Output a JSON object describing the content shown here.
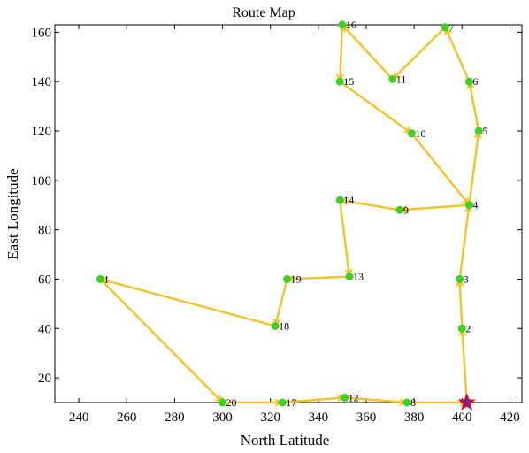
{
  "chart_data": {
    "type": "line",
    "title": "Route Map",
    "xlabel": "North Latitude",
    "ylabel": "East Longitude",
    "xlim": [
      230,
      425
    ],
    "ylim": [
      10,
      163
    ],
    "xticks": [
      240,
      260,
      280,
      300,
      320,
      340,
      360,
      380,
      400,
      420
    ],
    "yticks": [
      20,
      40,
      60,
      80,
      100,
      120,
      140,
      160
    ],
    "grid": false,
    "colors": {
      "route": "#f5c226",
      "point": "#3dd124",
      "start": "#8b1a8b"
    },
    "points": [
      {
        "label": "1",
        "x": 249,
        "y": 60
      },
      {
        "label": "2",
        "x": 400,
        "y": 40
      },
      {
        "label": "3",
        "x": 399,
        "y": 60
      },
      {
        "label": "4",
        "x": 403,
        "y": 90
      },
      {
        "label": "5",
        "x": 407,
        "y": 120
      },
      {
        "label": "6",
        "x": 403,
        "y": 140
      },
      {
        "label": "7",
        "x": 393,
        "y": 162
      },
      {
        "label": "8",
        "x": 377,
        "y": 10
      },
      {
        "label": "9",
        "x": 374,
        "y": 88
      },
      {
        "label": "10",
        "x": 379,
        "y": 119
      },
      {
        "label": "11",
        "x": 371,
        "y": 141
      },
      {
        "label": "12",
        "x": 351,
        "y": 12
      },
      {
        "label": "13",
        "x": 353,
        "y": 61
      },
      {
        "label": "14",
        "x": 349,
        "y": 92
      },
      {
        "label": "15",
        "x": 349,
        "y": 140
      },
      {
        "label": "16",
        "x": 350,
        "y": 163
      },
      {
        "label": "17",
        "x": 325,
        "y": 10
      },
      {
        "label": "18",
        "x": 322,
        "y": 41
      },
      {
        "label": "19",
        "x": 327,
        "y": 60
      },
      {
        "label": "20",
        "x": 300,
        "y": 10
      }
    ],
    "route_start": {
      "x": 402,
      "y": 10
    },
    "route": [
      "2",
      "3",
      "4",
      "5",
      "6",
      "7",
      "11",
      "16",
      "15",
      "10",
      "4",
      "9",
      "14",
      "13",
      "19",
      "18",
      "1",
      "20",
      "17",
      "12",
      "8"
    ]
  }
}
